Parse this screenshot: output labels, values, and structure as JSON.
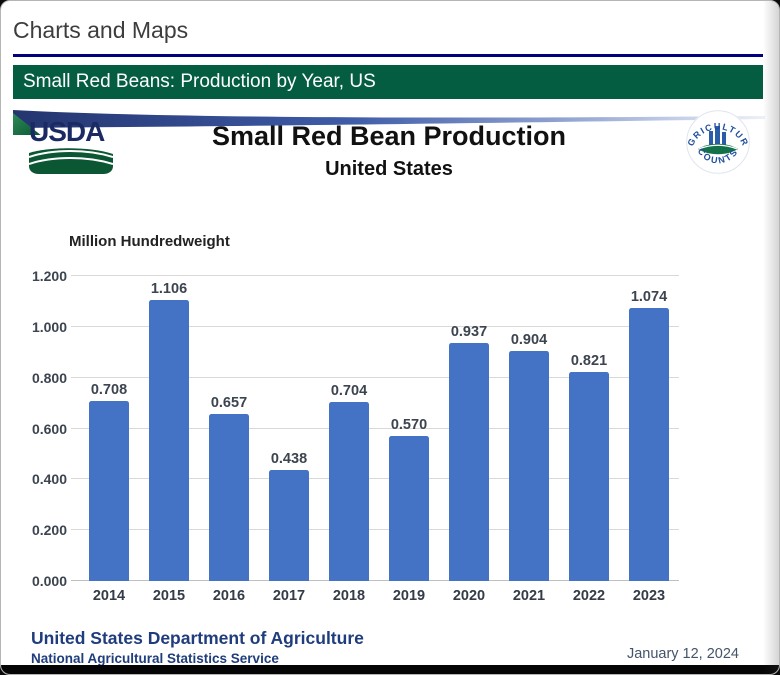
{
  "page": {
    "heading": "Charts and Maps",
    "green_bar_title": "Small Red Beans: Production by Year, US"
  },
  "chart_header": {
    "usda_logo_text": "USDA",
    "agcounts_top_text": "AGRICULTURE",
    "agcounts_bottom_text": "COUNTS"
  },
  "chart_data": {
    "type": "bar",
    "title": "Small Red Bean Production",
    "subtitle": "United States",
    "unit_label": "Million Hundredweight",
    "categories": [
      "2014",
      "2015",
      "2016",
      "2017",
      "2018",
      "2019",
      "2020",
      "2021",
      "2022",
      "2023"
    ],
    "values": [
      0.708,
      1.106,
      0.657,
      0.438,
      0.704,
      0.57,
      0.937,
      0.904,
      0.821,
      1.074
    ],
    "value_labels": [
      "0.708",
      "1.106",
      "0.657",
      "0.438",
      "0.704",
      "0.570",
      "0.937",
      "0.904",
      "0.821",
      "1.074"
    ],
    "ylim": [
      0,
      1.2
    ],
    "ytick_step": 0.2,
    "ytick_labels": [
      "0.000",
      "0.200",
      "0.400",
      "0.600",
      "0.800",
      "1.000",
      "1.200"
    ],
    "grid": true,
    "legend": "none",
    "bar_color": "#4472C4"
  },
  "footer": {
    "org": "United States Department of Agriculture",
    "agency": "National Agricultural Statistics Service",
    "date": "January 12, 2024"
  },
  "colors": {
    "accent_navy_rule": "#000080",
    "green_bar_bg": "#045C41",
    "bar_blue": "#4472C4",
    "footer_navy": "#1F3D7C",
    "date_gray_blue": "#44546A",
    "gridline_gray": "#D9D9D9"
  }
}
